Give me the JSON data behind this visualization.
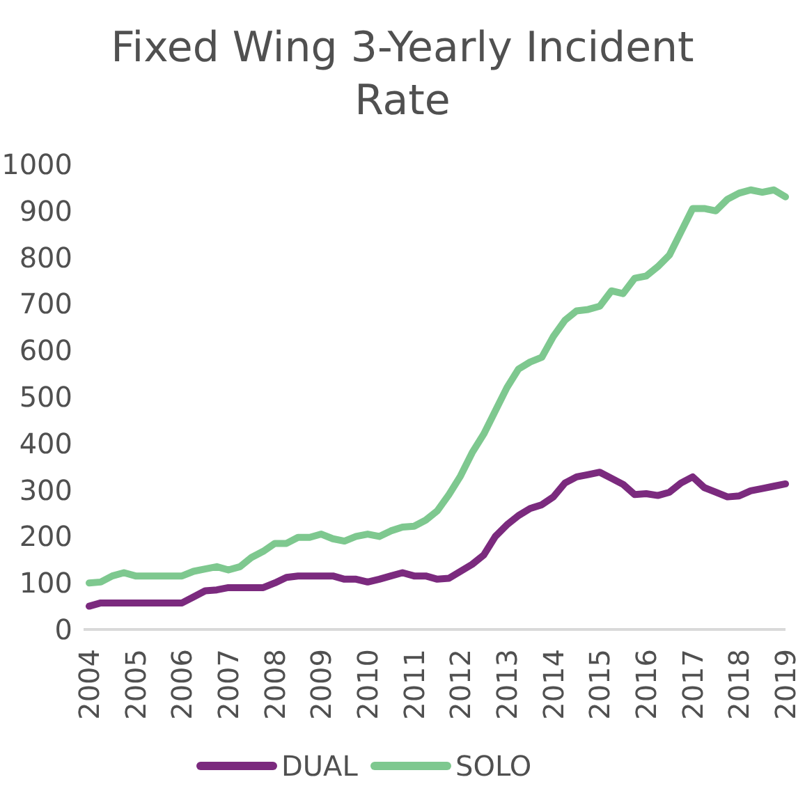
{
  "chart_data": {
    "type": "line",
    "title": "Fixed Wing 3-Yearly Incident Rate",
    "categories": [
      "2004",
      null,
      null,
      null,
      "2005",
      null,
      null,
      null,
      "2006",
      null,
      null,
      null,
      "2007",
      null,
      null,
      null,
      "2008",
      null,
      null,
      null,
      "2009",
      null,
      null,
      null,
      "2010",
      null,
      null,
      null,
      "2011",
      null,
      null,
      null,
      "2012",
      null,
      null,
      null,
      "2013",
      null,
      null,
      null,
      "2014",
      null,
      null,
      null,
      "2015",
      null,
      null,
      null,
      "2016",
      null,
      null,
      null,
      "2017",
      null,
      null,
      null,
      "2018",
      null,
      null,
      null,
      "2019"
    ],
    "series": [
      {
        "name": "DUAL",
        "color": "#7b2a7e",
        "values": [
          50,
          57,
          57,
          57,
          57,
          57,
          57,
          57,
          57,
          70,
          83,
          85,
          90,
          90,
          90,
          90,
          100,
          112,
          115,
          115,
          115,
          115,
          108,
          108,
          102,
          108,
          115,
          122,
          115,
          115,
          108,
          110,
          125,
          140,
          160,
          200,
          225,
          245,
          260,
          268,
          285,
          315,
          328,
          333,
          338,
          325,
          312,
          290,
          292,
          288,
          295,
          315,
          328,
          305,
          295,
          285,
          287,
          298,
          303,
          308,
          313
        ]
      },
      {
        "name": "SOLO",
        "color": "#7ec88f",
        "values": [
          100,
          102,
          115,
          122,
          115,
          115,
          115,
          115,
          115,
          125,
          130,
          135,
          128,
          135,
          155,
          168,
          185,
          185,
          198,
          198,
          205,
          195,
          190,
          200,
          205,
          200,
          212,
          220,
          222,
          235,
          255,
          290,
          330,
          380,
          420,
          470,
          520,
          560,
          575,
          585,
          630,
          665,
          685,
          688,
          695,
          728,
          722,
          755,
          760,
          780,
          805,
          855,
          905,
          905,
          900,
          925,
          938,
          945,
          940,
          945,
          930
        ]
      }
    ],
    "ylim": [
      0,
      1000
    ],
    "yticks": [
      0,
      100,
      200,
      300,
      400,
      500,
      600,
      700,
      800,
      900,
      1000
    ],
    "grid": false,
    "legend": "bottom",
    "line_style": "solid"
  }
}
